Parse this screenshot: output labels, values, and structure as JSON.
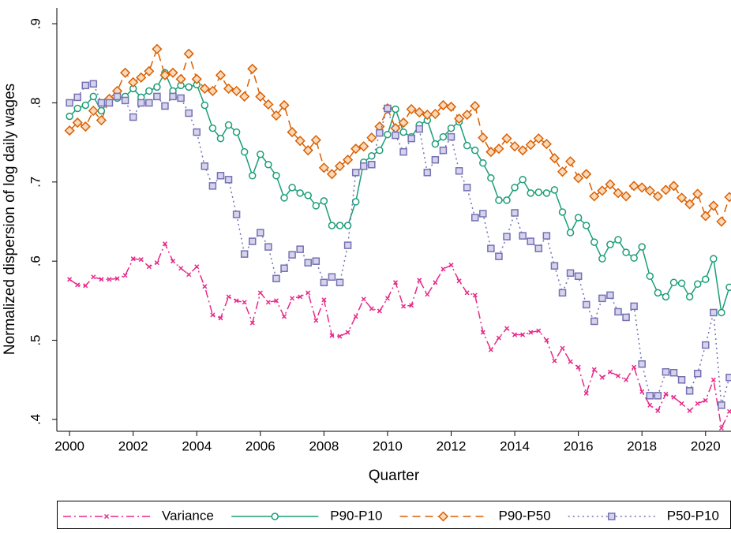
{
  "chart_data": {
    "type": "line",
    "x_label": "Quarter",
    "y_label": "Normalized dispersion of log daily wages",
    "x": [
      2000,
      2000.25,
      2000.5,
      2000.75,
      2001,
      2001.25,
      2001.5,
      2001.75,
      2002,
      2002.25,
      2002.5,
      2002.75,
      2003,
      2003.25,
      2003.5,
      2003.75,
      2004,
      2004.25,
      2004.5,
      2004.75,
      2005,
      2005.25,
      2005.5,
      2005.75,
      2006,
      2006.25,
      2006.5,
      2006.75,
      2007,
      2007.25,
      2007.5,
      2007.75,
      2008,
      2008.25,
      2008.5,
      2008.75,
      2009,
      2009.25,
      2009.5,
      2009.75,
      2010,
      2010.25,
      2010.5,
      2010.75,
      2011,
      2011.25,
      2011.5,
      2011.75,
      2012,
      2012.25,
      2012.5,
      2012.75,
      2013,
      2013.25,
      2013.5,
      2013.75,
      2014,
      2014.25,
      2014.5,
      2014.75,
      2015,
      2015.25,
      2015.5,
      2015.75,
      2016,
      2016.25,
      2016.5,
      2016.75,
      2017,
      2017.25,
      2017.5,
      2017.75,
      2018,
      2018.25,
      2018.5,
      2018.75,
      2019,
      2019.25,
      2019.5,
      2019.75,
      2020,
      2020.25,
      2020.5,
      2020.75
    ],
    "series": [
      {
        "name": "Variance",
        "color": "#e7298a",
        "marker": "x",
        "line_style": "dashdot",
        "values": [
          0.577,
          0.57,
          0.569,
          0.58,
          0.577,
          0.577,
          0.578,
          0.582,
          0.603,
          0.602,
          0.593,
          0.598,
          0.622,
          0.6,
          0.591,
          0.583,
          0.593,
          0.568,
          0.532,
          0.528,
          0.555,
          0.55,
          0.548,
          0.522,
          0.56,
          0.548,
          0.55,
          0.53,
          0.553,
          0.555,
          0.56,
          0.525,
          0.551,
          0.506,
          0.505,
          0.51,
          0.53,
          0.552,
          0.54,
          0.537,
          0.553,
          0.573,
          0.543,
          0.544,
          0.576,
          0.558,
          0.573,
          0.59,
          0.595,
          0.575,
          0.56,
          0.557,
          0.51,
          0.488,
          0.503,
          0.515,
          0.507,
          0.507,
          0.51,
          0.512,
          0.5,
          0.474,
          0.49,
          0.473,
          0.466,
          0.433,
          0.463,
          0.453,
          0.46,
          0.455,
          0.45,
          0.466,
          0.435,
          0.418,
          0.411,
          0.432,
          0.428,
          0.42,
          0.411,
          0.42,
          0.424,
          0.45,
          0.389,
          0.41
        ]
      },
      {
        "name": "P90-P10",
        "color": "#1b9e77",
        "marker": "circle",
        "line_style": "solid",
        "values": [
          0.783,
          0.793,
          0.797,
          0.808,
          0.79,
          0.803,
          0.806,
          0.808,
          0.818,
          0.807,
          0.815,
          0.82,
          0.838,
          0.815,
          0.822,
          0.82,
          0.823,
          0.797,
          0.768,
          0.755,
          0.772,
          0.763,
          0.738,
          0.708,
          0.735,
          0.722,
          0.708,
          0.68,
          0.693,
          0.686,
          0.683,
          0.67,
          0.676,
          0.645,
          0.645,
          0.645,
          0.675,
          0.725,
          0.733,
          0.74,
          0.76,
          0.792,
          0.763,
          0.757,
          0.772,
          0.778,
          0.748,
          0.757,
          0.768,
          0.776,
          0.746,
          0.74,
          0.724,
          0.705,
          0.677,
          0.677,
          0.693,
          0.703,
          0.686,
          0.687,
          0.686,
          0.69,
          0.662,
          0.636,
          0.655,
          0.645,
          0.624,
          0.603,
          0.621,
          0.627,
          0.611,
          0.604,
          0.618,
          0.581,
          0.56,
          0.555,
          0.573,
          0.572,
          0.555,
          0.571,
          0.577,
          0.603,
          0.535,
          0.567
        ]
      },
      {
        "name": "P90-P50",
        "color": "#d95f02",
        "marker": "diamond",
        "line_style": "dash",
        "values": [
          0.765,
          0.775,
          0.77,
          0.79,
          0.778,
          0.805,
          0.815,
          0.838,
          0.826,
          0.832,
          0.84,
          0.868,
          0.835,
          0.838,
          0.83,
          0.862,
          0.83,
          0.818,
          0.815,
          0.835,
          0.818,
          0.815,
          0.808,
          0.843,
          0.808,
          0.798,
          0.784,
          0.797,
          0.763,
          0.752,
          0.74,
          0.753,
          0.718,
          0.71,
          0.72,
          0.728,
          0.742,
          0.745,
          0.756,
          0.77,
          0.793,
          0.768,
          0.775,
          0.792,
          0.788,
          0.785,
          0.786,
          0.797,
          0.795,
          0.78,
          0.785,
          0.796,
          0.756,
          0.738,
          0.742,
          0.755,
          0.745,
          0.74,
          0.747,
          0.755,
          0.748,
          0.73,
          0.713,
          0.726,
          0.705,
          0.71,
          0.682,
          0.689,
          0.697,
          0.686,
          0.682,
          0.695,
          0.693,
          0.689,
          0.682,
          0.69,
          0.695,
          0.68,
          0.672,
          0.685,
          0.657,
          0.67,
          0.65,
          0.681
        ]
      },
      {
        "name": "P50-P10",
        "color": "#7570b3",
        "marker": "square",
        "line_style": "dot",
        "values": [
          0.8,
          0.807,
          0.822,
          0.824,
          0.8,
          0.8,
          0.808,
          0.803,
          0.782,
          0.8,
          0.8,
          0.808,
          0.796,
          0.808,
          0.806,
          0.787,
          0.763,
          0.72,
          0.695,
          0.708,
          0.703,
          0.659,
          0.609,
          0.625,
          0.636,
          0.618,
          0.578,
          0.591,
          0.608,
          0.615,
          0.598,
          0.6,
          0.573,
          0.58,
          0.573,
          0.62,
          0.712,
          0.72,
          0.722,
          0.762,
          0.793,
          0.759,
          0.738,
          0.755,
          0.767,
          0.712,
          0.728,
          0.74,
          0.757,
          0.714,
          0.693,
          0.655,
          0.66,
          0.616,
          0.606,
          0.631,
          0.661,
          0.632,
          0.625,
          0.616,
          0.632,
          0.594,
          0.56,
          0.585,
          0.581,
          0.545,
          0.524,
          0.553,
          0.557,
          0.536,
          0.529,
          0.543,
          0.47,
          0.43,
          0.43,
          0.46,
          0.459,
          0.45,
          0.436,
          0.458,
          0.494,
          0.535,
          0.418,
          0.453
        ]
      }
    ],
    "xlim": [
      1999.6,
      2020.8
    ],
    "ylim": [
      0.385,
      0.92
    ],
    "xticks": [
      2000,
      2002,
      2004,
      2006,
      2008,
      2010,
      2012,
      2014,
      2016,
      2018,
      2020
    ],
    "yticks": [
      {
        "value": 0.4,
        "label": ".4"
      },
      {
        "value": 0.5,
        "label": ".5"
      },
      {
        "value": 0.6,
        "label": ".6"
      },
      {
        "value": 0.7,
        "label": ".7"
      },
      {
        "value": 0.8,
        "label": ".8"
      },
      {
        "value": 0.9,
        "label": ".9"
      }
    ],
    "legend": "bottom"
  }
}
